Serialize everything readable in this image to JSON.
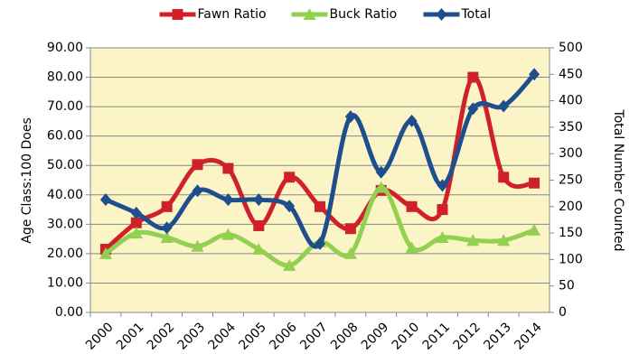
{
  "chart_data": {
    "type": "line",
    "y_label": "Age Class:100 Does",
    "y2_label": "Total Number Counted",
    "categories": [
      "2000",
      "2001",
      "2002",
      "2003",
      "2004",
      "2005",
      "2006",
      "2007",
      "2008",
      "2009",
      "2010",
      "2011",
      "2012",
      "2013",
      "2014"
    ],
    "series": [
      {
        "name": "Fawn Ratio",
        "color": "#d0202a",
        "marker": "square",
        "values": [
          21.5,
          30.5,
          36,
          50.3,
          49,
          29.5,
          46,
          36,
          28.5,
          41.5,
          36,
          35,
          80,
          46,
          44
        ]
      },
      {
        "name": "Buck Ratio",
        "color": "#92d050",
        "marker": "triangle",
        "values": [
          20,
          27,
          25.5,
          22.5,
          26.5,
          21.5,
          16,
          24,
          20,
          42.5,
          22,
          25.5,
          24.5,
          24.5,
          28
        ]
      },
      {
        "name": "Total",
        "color": "#1f4e8c",
        "marker": "diamond",
        "axis": "y2",
        "values": [
          213,
          188,
          160,
          230,
          213,
          213,
          201,
          130,
          370,
          265,
          362,
          240,
          385,
          390,
          450
        ]
      }
    ],
    "ylim": [
      0,
      90
    ],
    "yticks": [
      {
        "value": 0,
        "label": "0.00"
      },
      {
        "value": 10,
        "label": "10.00"
      },
      {
        "value": 20,
        "label": "20.00"
      },
      {
        "value": 30,
        "label": "30.00"
      },
      {
        "value": 40,
        "label": "40.00"
      },
      {
        "value": 50,
        "label": "50.00"
      },
      {
        "value": 60,
        "label": "60.00"
      },
      {
        "value": 70,
        "label": "70.00"
      },
      {
        "value": 80,
        "label": "80.00"
      },
      {
        "value": 90,
        "label": "90.00"
      }
    ],
    "y2lim": [
      0,
      500
    ],
    "y2ticks": [
      0,
      50,
      100,
      150,
      200,
      250,
      300,
      350,
      400,
      450,
      500
    ],
    "grid": true,
    "smooth": true,
    "plot_background": "#faf4c6",
    "legend": "top"
  }
}
